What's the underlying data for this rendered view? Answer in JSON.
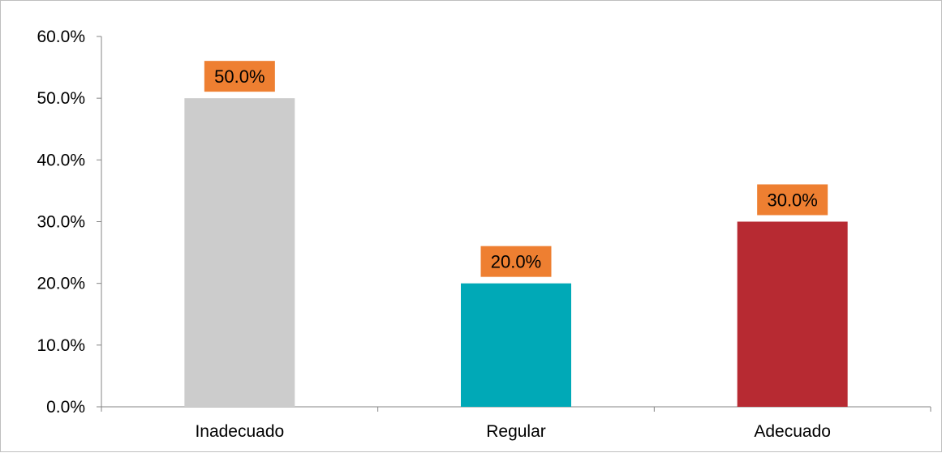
{
  "chart_data": {
    "type": "bar",
    "title": "",
    "xlabel": "",
    "ylabel": "",
    "categories": [
      "Inadecuado",
      "Regular",
      "Adecuado"
    ],
    "values": [
      50.0,
      20.0,
      30.0
    ],
    "value_labels": [
      "50.0%",
      "20.0%",
      "30.0%"
    ],
    "bar_colors": [
      "#cccccc",
      "#00a9b7",
      "#b72a32"
    ],
    "data_label_background": "#ee7f31",
    "ylim": [
      0,
      60
    ],
    "y_ticks": [
      0,
      10,
      20,
      30,
      40,
      50,
      60
    ],
    "y_tick_labels": [
      "0.0%",
      "10.0%",
      "20.0%",
      "30.0%",
      "40.0%",
      "50.0%",
      "60.0%"
    ],
    "grid": false,
    "legend": "none"
  }
}
